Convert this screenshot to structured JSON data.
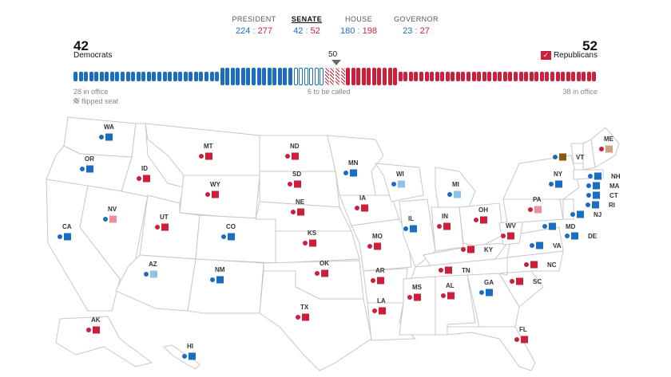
{
  "nav": {
    "tabs": [
      {
        "label": "PRESIDENT",
        "dem": "224",
        "rep": "277",
        "active": false
      },
      {
        "label": "SENATE",
        "dem": "42",
        "rep": "52",
        "active": true
      },
      {
        "label": "HOUSE",
        "dem": "180",
        "rep": "198",
        "active": false
      },
      {
        "label": "GOVERNOR",
        "dem": "23",
        "rep": "27",
        "active": false
      }
    ]
  },
  "senate": {
    "dem_total": "42",
    "dem_label": "Democrats",
    "rep_total": "52",
    "rep_label": "Republicans",
    "rep_check": "✓",
    "majority": "50",
    "dem_in_office": "28 in office",
    "to_be_called": "6 to be called",
    "rep_in_office": "38 in office",
    "flipped_legend": "flipped seat",
    "seat_counts": {
      "dem_in_office": 28,
      "dem_won": 14,
      "dem_uncalled": 6,
      "rep_flipped": 4,
      "rep_won": 10,
      "rep_in_office": 38
    }
  },
  "colors": {
    "dem": "#1a6dc0",
    "rep": "#cc1f3b",
    "dem_flip": "#8fc2e8",
    "rep_flip": "#ee8e9c",
    "ind_flip": "#cba27c",
    "ind": "#8a5a0c",
    "state_fill": "#ffffff",
    "state_border": "#cccccc"
  },
  "states": [
    {
      "code": "WA",
      "marks": [
        "dem",
        "dem"
      ]
    },
    {
      "code": "OR",
      "marks": [
        "dem",
        "dem"
      ]
    },
    {
      "code": "CA",
      "marks": [
        "dem",
        "dem"
      ]
    },
    {
      "code": "NV",
      "marks": [
        "dem",
        "rep_flip"
      ]
    },
    {
      "code": "ID",
      "marks": [
        "rep",
        "rep"
      ]
    },
    {
      "code": "MT",
      "marks": [
        "rep",
        "rep"
      ]
    },
    {
      "code": "WY",
      "marks": [
        "rep",
        "rep"
      ]
    },
    {
      "code": "UT",
      "marks": [
        "rep",
        "rep"
      ]
    },
    {
      "code": "AZ",
      "marks": [
        "dem",
        "dem_flip"
      ]
    },
    {
      "code": "CO",
      "marks": [
        "dem",
        "dem"
      ]
    },
    {
      "code": "NM",
      "marks": [
        "dem",
        "dem"
      ]
    },
    {
      "code": "ND",
      "marks": [
        "rep",
        "rep"
      ]
    },
    {
      "code": "SD",
      "marks": [
        "rep",
        "rep"
      ]
    },
    {
      "code": "NE",
      "marks": [
        "rep",
        "rep"
      ]
    },
    {
      "code": "KS",
      "marks": [
        "rep",
        "rep"
      ]
    },
    {
      "code": "OK",
      "marks": [
        "rep",
        "rep"
      ]
    },
    {
      "code": "TX",
      "marks": [
        "rep",
        "rep"
      ]
    },
    {
      "code": "MN",
      "marks": [
        "dem",
        "dem"
      ]
    },
    {
      "code": "IA",
      "marks": [
        "rep",
        "rep"
      ]
    },
    {
      "code": "MO",
      "marks": [
        "rep",
        "rep"
      ]
    },
    {
      "code": "AR",
      "marks": [
        "rep",
        "rep"
      ]
    },
    {
      "code": "LA",
      "marks": [
        "rep",
        "rep"
      ]
    },
    {
      "code": "WI",
      "marks": [
        "dem",
        "dem_flip"
      ]
    },
    {
      "code": "IL",
      "marks": [
        "dem",
        "dem"
      ]
    },
    {
      "code": "MI",
      "marks": [
        "dem",
        "dem_flip"
      ]
    },
    {
      "code": "IN",
      "marks": [
        "rep",
        "rep"
      ]
    },
    {
      "code": "OH",
      "marks": [
        "rep",
        "rep"
      ]
    },
    {
      "code": "KY",
      "marks": [
        "rep",
        "rep"
      ]
    },
    {
      "code": "TN",
      "marks": [
        "rep",
        "rep"
      ]
    },
    {
      "code": "MS",
      "marks": [
        "rep",
        "rep"
      ]
    },
    {
      "code": "AL",
      "marks": [
        "rep",
        "rep"
      ]
    },
    {
      "code": "GA",
      "marks": [
        "dem",
        "dem"
      ]
    },
    {
      "code": "FL",
      "marks": [
        "rep",
        "rep"
      ]
    },
    {
      "code": "SC",
      "marks": [
        "rep",
        "rep"
      ]
    },
    {
      "code": "NC",
      "marks": [
        "rep",
        "rep"
      ]
    },
    {
      "code": "VA",
      "marks": [
        "dem",
        "dem"
      ]
    },
    {
      "code": "WV",
      "marks": [
        "rep",
        "rep"
      ]
    },
    {
      "code": "PA",
      "marks": [
        "rep",
        "rep_flip"
      ]
    },
    {
      "code": "NY",
      "marks": [
        "dem",
        "dem"
      ]
    },
    {
      "code": "VT",
      "marks": [
        "dem",
        "ind"
      ]
    },
    {
      "code": "ME",
      "marks": [
        "rep",
        "ind_flip"
      ]
    },
    {
      "code": "NH",
      "marks": [
        "dem",
        "dem"
      ]
    },
    {
      "code": "MA",
      "marks": [
        "dem",
        "dem"
      ]
    },
    {
      "code": "CT",
      "marks": [
        "dem",
        "dem"
      ]
    },
    {
      "code": "RI",
      "marks": [
        "dem",
        "dem"
      ]
    },
    {
      "code": "NJ",
      "marks": [
        "dem",
        "dem"
      ]
    },
    {
      "code": "DE",
      "marks": [
        "dem",
        "dem"
      ]
    },
    {
      "code": "MD",
      "marks": [
        "dem",
        "dem"
      ]
    },
    {
      "code": "AK",
      "marks": [
        "rep",
        "rep"
      ]
    },
    {
      "code": "HI",
      "marks": [
        "dem",
        "dem"
      ]
    }
  ]
}
